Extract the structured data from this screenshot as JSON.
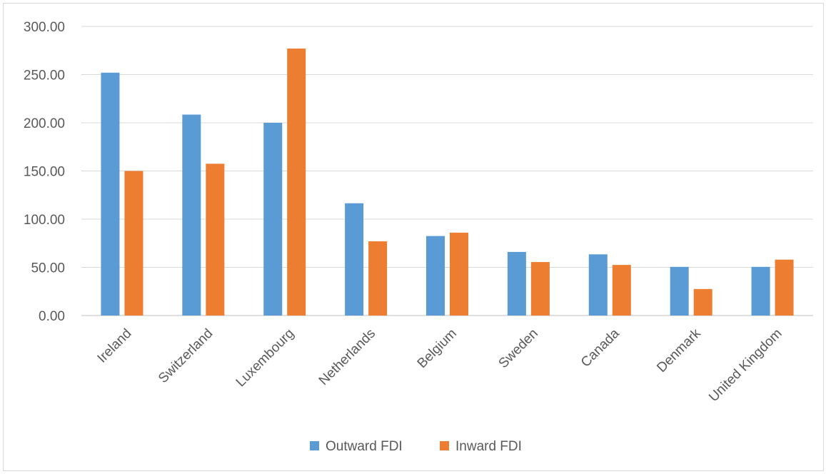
{
  "chart_data": {
    "type": "bar",
    "title": "",
    "xlabel": "",
    "ylabel": "",
    "ylim": [
      0,
      300
    ],
    "y_ticks": [
      "0.00",
      "50.00",
      "100.00",
      "150.00",
      "200.00",
      "250.00",
      "300.00"
    ],
    "grid": true,
    "legend_position": "bottom",
    "categories": [
      "Ireland",
      "Switzerland",
      "Luxembourg",
      "Netherlands",
      "Belgium",
      "Sweden",
      "Canada",
      "Denmark",
      "United Kingdom"
    ],
    "series": [
      {
        "name": "Outward FDI",
        "color": "#5b9bd5",
        "values": [
          252,
          208.5,
          200,
          116.5,
          82.5,
          66,
          63.5,
          50.5,
          50.5
        ]
      },
      {
        "name": "Inward FDI",
        "color": "#ed7d31",
        "values": [
          150,
          157.5,
          277,
          77,
          86,
          55.5,
          52.5,
          27.5,
          58
        ]
      }
    ]
  }
}
